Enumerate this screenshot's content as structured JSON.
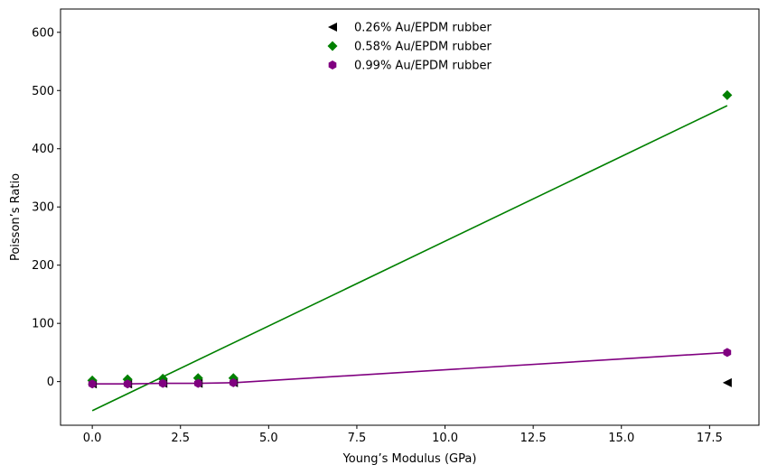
{
  "chart_data": {
    "type": "scatter",
    "xlabel": "Young’s Modulus (GPa)",
    "ylabel": "Poisson’s Ratio",
    "xlim": [
      -0.9,
      18.9
    ],
    "ylim": [
      -75,
      640
    ],
    "xticks": [
      0.0,
      2.5,
      5.0,
      7.5,
      10.0,
      12.5,
      15.0,
      17.5
    ],
    "xtick_labels": [
      "0.0",
      "2.5",
      "5.0",
      "7.5",
      "10.0",
      "12.5",
      "15.0",
      "17.5"
    ],
    "yticks": [
      0,
      100,
      200,
      300,
      400,
      500,
      600
    ],
    "ytick_labels": [
      "0",
      "100",
      "200",
      "300",
      "400",
      "500",
      "600"
    ],
    "grid": false,
    "legend_position": "top-center",
    "series": [
      {
        "name": "0.26% Au/EPDM rubber",
        "marker": "triangle-left",
        "color": "#000000",
        "points": [
          [
            0,
            -4
          ],
          [
            1,
            -4
          ],
          [
            2,
            -3
          ],
          [
            3,
            -3
          ],
          [
            4,
            -2
          ],
          [
            18,
            -2
          ]
        ],
        "fit_line": null
      },
      {
        "name": "0.58% Au/EPDM rubber",
        "marker": "diamond",
        "color": "#008000",
        "points": [
          [
            0,
            2
          ],
          [
            1,
            4
          ],
          [
            2,
            5
          ],
          [
            3,
            6
          ],
          [
            4,
            6
          ],
          [
            18,
            492
          ]
        ],
        "fit_line": [
          [
            0,
            -50
          ],
          [
            18,
            474
          ]
        ]
      },
      {
        "name": "0.99% Au/EPDM rubber",
        "marker": "hexagon",
        "color": "#800080",
        "points": [
          [
            0,
            -4
          ],
          [
            1,
            -4
          ],
          [
            2,
            -3
          ],
          [
            3,
            -3
          ],
          [
            4,
            -2
          ],
          [
            18,
            50
          ]
        ],
        "fit_line": [
          [
            0,
            -4
          ],
          [
            1,
            -4
          ],
          [
            2,
            -3
          ],
          [
            3,
            -3
          ],
          [
            4,
            -2
          ],
          [
            18,
            50
          ]
        ]
      }
    ]
  }
}
